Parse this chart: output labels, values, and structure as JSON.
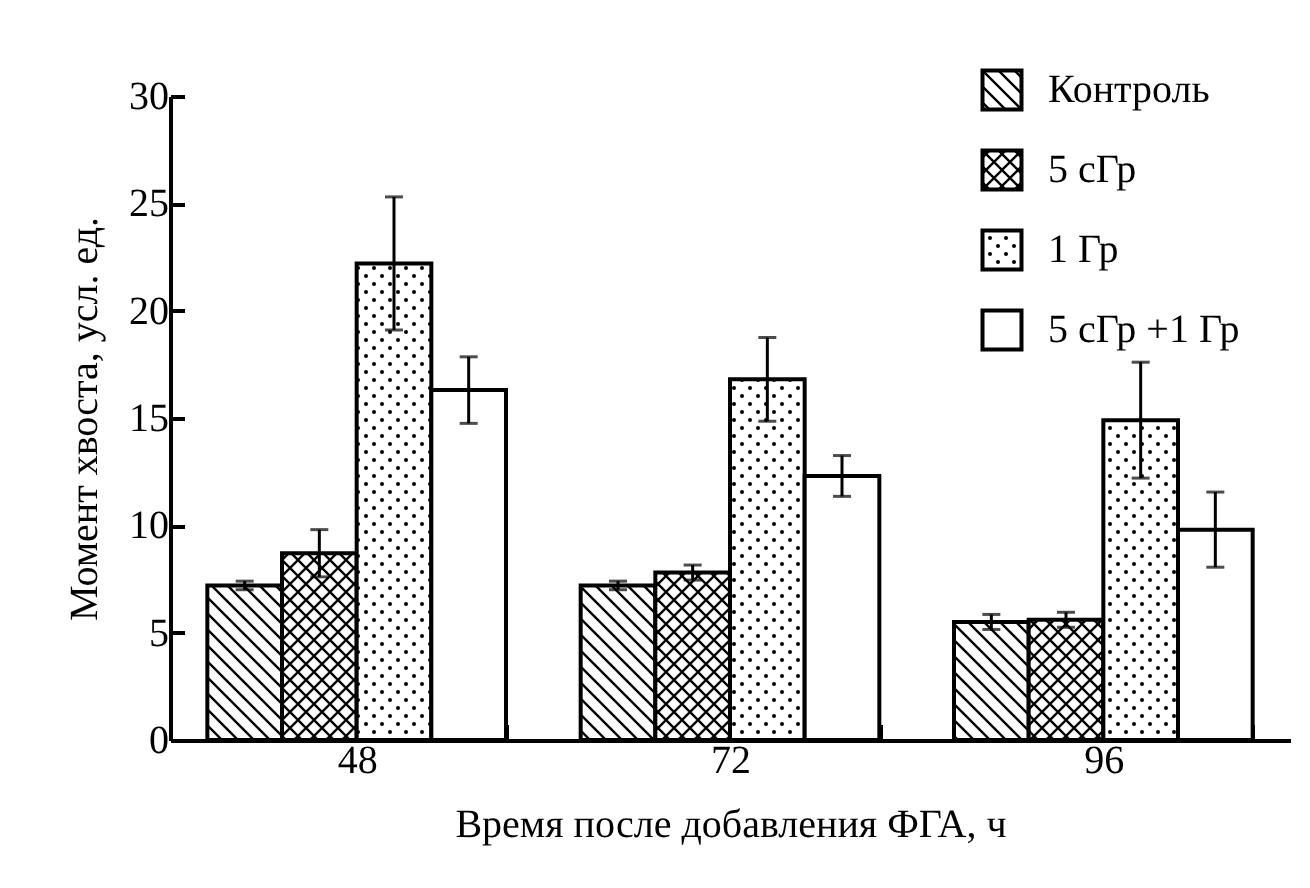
{
  "chart_data": {
    "type": "bar",
    "xlabel": "Время после добавления ФГА, ч",
    "ylabel": "Момент хвоста, усл. ед.",
    "categories": [
      "48",
      "72",
      "96"
    ],
    "series": [
      {
        "name": "Контроль",
        "color": "#000000",
        "values": [
          7.2,
          7.2,
          5.5
        ],
        "errors": [
          0.2,
          0.2,
          0.35
        ]
      },
      {
        "name": "5 сГр",
        "color": "#000000",
        "values": [
          8.7,
          7.8,
          5.6
        ],
        "errors": [
          1.1,
          0.35,
          0.35
        ]
      },
      {
        "name": "1 Гр",
        "color": "#000000",
        "values": [
          22.2,
          16.8,
          14.9
        ],
        "errors": [
          3.1,
          1.95,
          2.7
        ]
      },
      {
        "name": "5 сГр +1 Гр",
        "color": "#ffffff",
        "values": [
          16.3,
          12.3,
          9.8
        ],
        "errors": [
          1.55,
          0.95,
          1.75
        ]
      }
    ],
    "ylim": [
      0,
      30
    ],
    "yticks": [
      0,
      5,
      10,
      15,
      20,
      25,
      30
    ],
    "grid": false,
    "legend": "top right"
  }
}
